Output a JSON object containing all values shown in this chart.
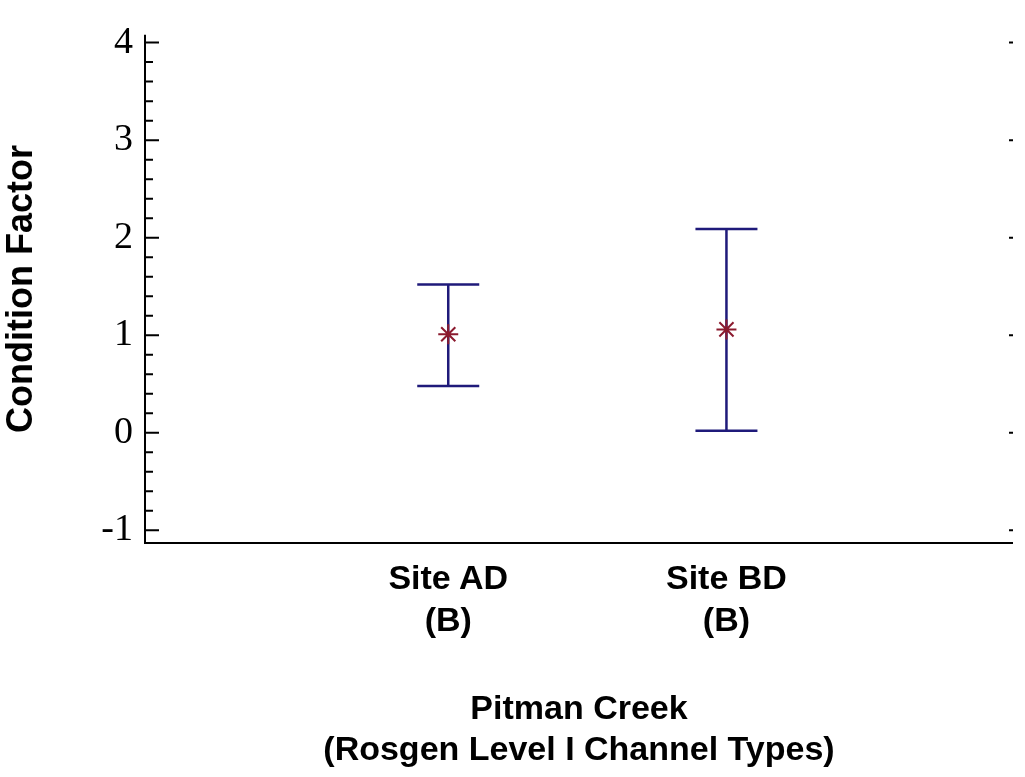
{
  "chart_data": {
    "type": "scatter",
    "xlabel": "Pitman Creek\n(Rosgen Level I Channel Types)",
    "ylabel": "Condition Factor",
    "categories": [
      "Site AD\n(B)",
      "Site BD\n(B)"
    ],
    "color": "#8b1a2e",
    "values": [
      1.01,
      1.06
    ],
    "errors": [
      [
        0.48,
        1.52
      ],
      [
        0.02,
        2.09
      ]
    ],
    "ylim": [
      -1.13,
      4.08
    ],
    "yticks": [
      -1,
      {
        "value": -0.8,
        "label": null
      },
      {
        "value": -0.6,
        "label": null
      },
      {
        "value": -0.4,
        "label": null
      },
      {
        "value": -0.2,
        "label": null
      },
      0,
      {
        "value": 0.2,
        "label": null
      },
      {
        "value": 0.4,
        "label": null
      },
      {
        "value": 0.6,
        "label": null
      },
      {
        "value": 0.8,
        "label": null
      },
      1,
      {
        "value": 1.2,
        "label": null
      },
      {
        "value": 1.4,
        "label": null
      },
      {
        "value": 1.6,
        "label": null
      },
      {
        "value": 1.8,
        "label": null
      },
      2,
      {
        "value": 2.2,
        "label": null
      },
      {
        "value": 2.4,
        "label": null
      },
      {
        "value": 2.6,
        "label": null
      },
      {
        "value": 2.8,
        "label": null
      },
      3,
      {
        "value": 3.2,
        "label": null
      },
      {
        "value": 3.4,
        "label": null
      },
      {
        "value": 3.6,
        "label": null
      },
      {
        "value": 3.8,
        "label": null
      },
      4
    ],
    "marker": "cross",
    "grid": false,
    "legend": false
  }
}
